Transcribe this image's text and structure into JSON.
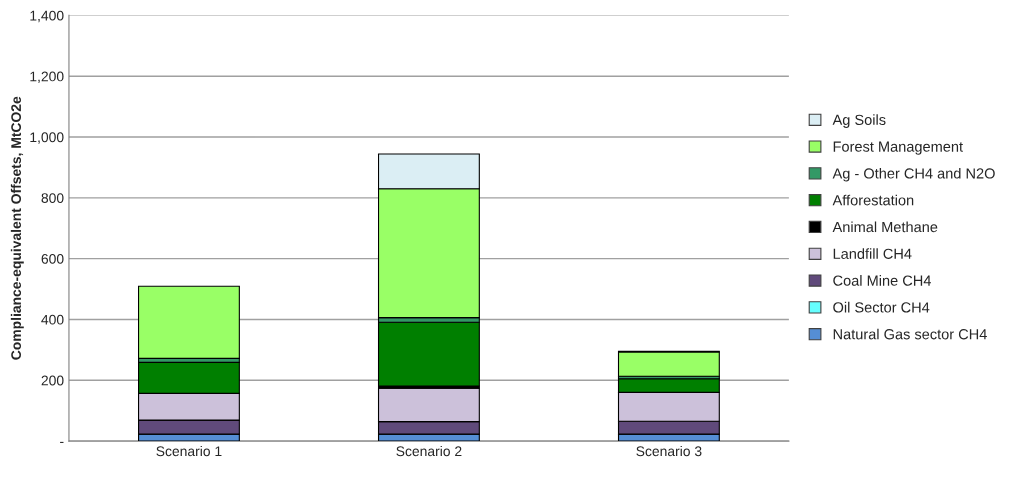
{
  "chart_data": {
    "type": "bar",
    "stacked": true,
    "ylabel": "Compliance-equivalent Offsets, MtCO2e",
    "categories": [
      "Scenario 1",
      "Scenario 2",
      "Scenario 3"
    ],
    "series": [
      {
        "name": "Natural Gas sector CH4",
        "color": "#558ed5",
        "values": [
          23,
          23,
          23
        ]
      },
      {
        "name": "Oil Sector CH4",
        "color": "#66ffff",
        "values": [
          null,
          null,
          null
        ]
      },
      {
        "name": "Coal Mine CH4",
        "color": "#604a7b",
        "values": [
          46,
          41,
          42
        ]
      },
      {
        "name": "Landfill CH4",
        "color": "#ccc1da",
        "values": [
          88,
          110,
          95
        ]
      },
      {
        "name": "Animal Methane",
        "color": "#000000",
        "values": [
          null,
          7,
          null
        ]
      },
      {
        "name": "Afforestation",
        "color": "#007f00",
        "values": [
          102,
          210,
          45
        ]
      },
      {
        "name": "Ag - Other CH4 and N2O",
        "color": "#339966",
        "values": [
          13,
          15,
          8
        ]
      },
      {
        "name": "Forest Management",
        "color": "#99ff66",
        "values": [
          237,
          424,
          80
        ]
      },
      {
        "name": "Ag Soils",
        "color": "#dbeef4",
        "values": [
          null,
          114,
          2
        ]
      }
    ],
    "ylim": [
      0,
      1400
    ],
    "yticks": [
      {
        "value": 0,
        "label": "-"
      },
      {
        "value": 200,
        "label": "200"
      },
      {
        "value": 400,
        "label": "400"
      },
      {
        "value": 600,
        "label": "600"
      },
      {
        "value": 800,
        "label": "800"
      },
      {
        "value": 1000,
        "label": "1,000"
      },
      {
        "value": 1200,
        "label": "1,200"
      },
      {
        "value": 1400,
        "label": "1,400"
      }
    ],
    "grid": "y",
    "legend": "right"
  }
}
